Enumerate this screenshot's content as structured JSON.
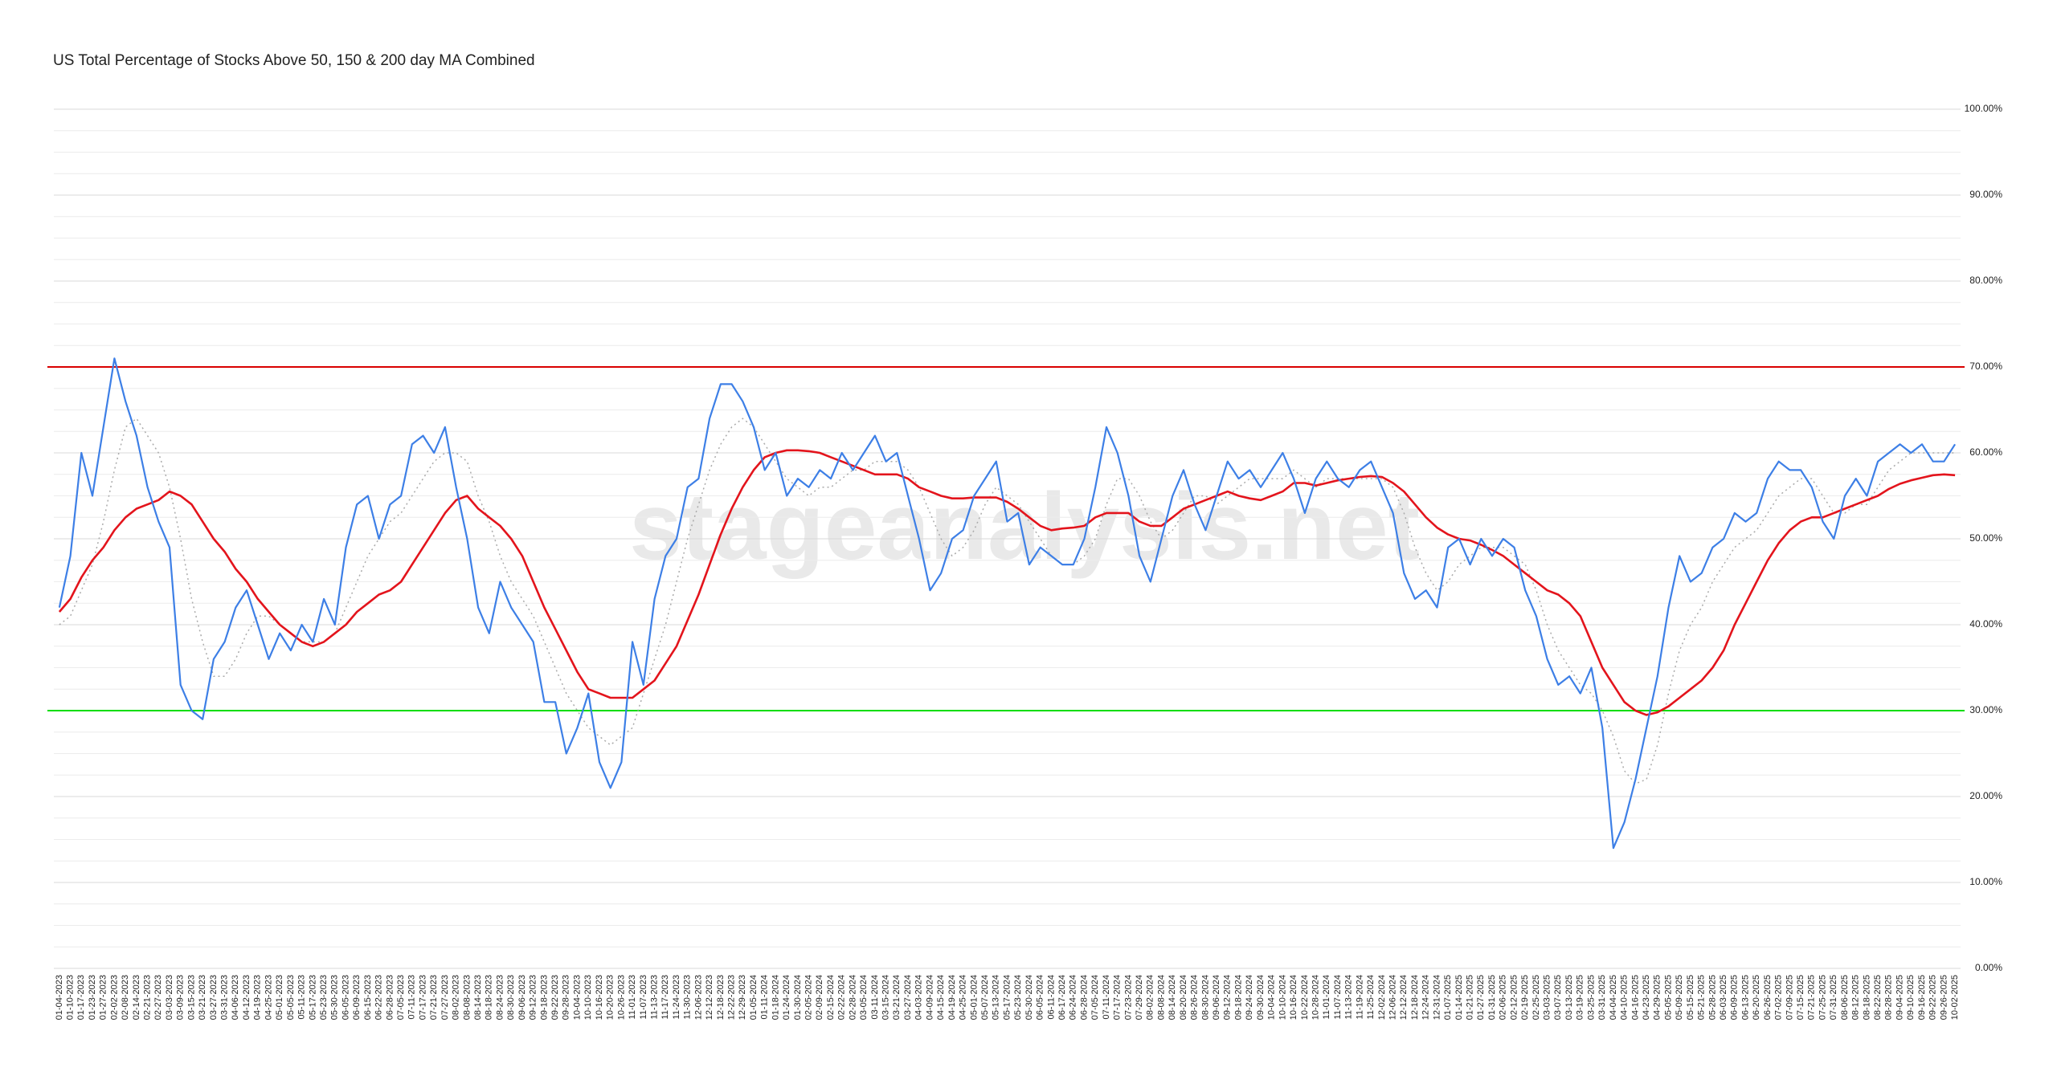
{
  "chart_data": {
    "type": "line",
    "title": "US Total Percentage of Stocks Above 50, 150 & 200 day MA Combined",
    "watermark": "stageanalysis.net",
    "categories": [
      "01-04-2023",
      "01-10-2023",
      "01-17-2023",
      "01-23-2023",
      "01-27-2023",
      "02-02-2023",
      "02-08-2023",
      "02-14-2023",
      "02-21-2023",
      "02-27-2023",
      "03-03-2023",
      "03-09-2023",
      "03-15-2023",
      "03-21-2023",
      "03-27-2023",
      "03-31-2023",
      "04-06-2023",
      "04-12-2023",
      "04-19-2023",
      "04-25-2023",
      "05-01-2023",
      "05-05-2023",
      "05-11-2023",
      "05-17-2023",
      "05-23-2023",
      "05-30-2023",
      "06-05-2023",
      "06-09-2023",
      "06-15-2023",
      "06-22-2023",
      "06-28-2023",
      "07-05-2023",
      "07-11-2023",
      "07-17-2023",
      "07-21-2023",
      "07-27-2023",
      "08-02-2023",
      "08-08-2023",
      "08-14-2023",
      "08-18-2023",
      "08-24-2023",
      "08-30-2023",
      "09-06-2023",
      "09-12-2023",
      "09-18-2023",
      "09-22-2023",
      "09-28-2023",
      "10-04-2023",
      "10-10-2023",
      "10-16-2023",
      "10-20-2023",
      "10-26-2023",
      "11-01-2023",
      "11-07-2023",
      "11-13-2023",
      "11-17-2023",
      "11-24-2023",
      "11-30-2023",
      "12-06-2023",
      "12-12-2023",
      "12-18-2023",
      "12-22-2023",
      "12-29-2023",
      "01-05-2024",
      "01-11-2024",
      "01-18-2024",
      "01-24-2024",
      "01-30-2024",
      "02-05-2024",
      "02-09-2024",
      "02-15-2024",
      "02-22-2024",
      "02-28-2024",
      "03-05-2024",
      "03-11-2024",
      "03-15-2024",
      "03-21-2024",
      "03-27-2024",
      "04-03-2024",
      "04-09-2024",
      "04-15-2024",
      "04-19-2024",
      "04-25-2024",
      "05-01-2024",
      "05-07-2024",
      "05-13-2024",
      "05-17-2024",
      "05-23-2024",
      "05-30-2024",
      "06-05-2024",
      "06-11-2024",
      "06-17-2024",
      "06-24-2024",
      "06-28-2024",
      "07-05-2024",
      "07-11-2024",
      "07-17-2024",
      "07-23-2024",
      "07-29-2024",
      "08-02-2024",
      "08-08-2024",
      "08-14-2024",
      "08-20-2024",
      "08-26-2024",
      "08-30-2024",
      "09-06-2024",
      "09-12-2024",
      "09-18-2024",
      "09-24-2024",
      "09-30-2024",
      "10-04-2024",
      "10-10-2024",
      "10-16-2024",
      "10-22-2024",
      "10-28-2024",
      "11-01-2024",
      "11-07-2024",
      "11-13-2024",
      "11-19-2024",
      "11-25-2024",
      "12-02-2024",
      "12-06-2024",
      "12-12-2024",
      "12-18-2024",
      "12-24-2024",
      "12-31-2024",
      "01-07-2025",
      "01-14-2025",
      "01-21-2025",
      "01-27-2025",
      "01-31-2025",
      "02-06-2025",
      "02-12-2025",
      "02-19-2025",
      "02-25-2025",
      "03-03-2025",
      "03-07-2025",
      "03-13-2025",
      "03-19-2025",
      "03-25-2025",
      "03-31-2025",
      "04-04-2025",
      "04-10-2025",
      "04-16-2025",
      "04-23-2025",
      "04-29-2025",
      "05-05-2025",
      "05-09-2025",
      "05-15-2025",
      "05-21-2025",
      "05-28-2025",
      "06-03-2025",
      "06-09-2025",
      "06-13-2025",
      "06-20-2025",
      "06-26-2025",
      "07-02-2025",
      "07-09-2025",
      "07-15-2025",
      "07-21-2025",
      "07-25-2025",
      "07-31-2025",
      "08-06-2025",
      "08-12-2025",
      "08-18-2025",
      "08-22-2025",
      "08-28-2025",
      "09-04-2025",
      "09-10-2025",
      "09-16-2025",
      "09-22-2025",
      "09-26-2025",
      "10-02-2025"
    ],
    "series": [
      {
        "color": "#3d7fe6",
        "width": 2.2,
        "values": [
          42,
          48,
          60,
          55,
          63,
          71,
          66,
          62,
          56,
          52,
          49,
          33,
          30,
          29,
          36,
          38,
          42,
          44,
          40,
          36,
          39,
          37,
          40,
          38,
          43,
          40,
          49,
          54,
          55,
          50,
          54,
          55,
          61,
          62,
          60,
          63,
          56,
          50,
          42,
          39,
          45,
          42,
          40,
          38,
          31,
          31,
          25,
          28,
          32,
          24,
          21,
          24,
          38,
          33,
          43,
          48,
          50,
          56,
          57,
          64,
          68,
          68,
          66,
          63,
          58,
          60,
          55,
          57,
          56,
          58,
          57,
          60,
          58,
          60,
          62,
          59,
          60,
          55,
          50,
          44,
          46,
          50,
          51,
          55,
          57,
          59,
          52,
          53,
          47,
          49,
          48,
          47,
          47,
          50,
          56,
          63,
          60,
          55,
          48,
          45,
          50,
          55,
          58,
          54,
          51,
          55,
          59,
          57,
          58,
          56,
          58,
          60,
          57,
          53,
          57,
          59,
          57,
          56,
          58,
          59,
          56,
          53,
          46,
          43,
          44,
          42,
          49,
          50,
          47,
          50,
          48,
          50,
          49,
          44,
          41,
          36,
          33,
          34,
          32,
          35,
          28,
          14,
          17,
          22,
          28,
          34,
          42,
          48,
          45,
          46,
          49,
          50,
          53,
          52,
          53,
          57,
          59,
          58,
          58,
          56,
          52,
          50,
          55,
          57,
          55,
          59,
          60,
          61,
          60,
          61,
          59,
          59,
          61
        ]
      },
      {
        "color": "#aaaaaa",
        "width": 1.5,
        "dash": "2 4",
        "values": [
          40,
          41,
          44,
          47,
          52,
          58,
          63,
          64,
          62,
          60,
          56,
          50,
          43,
          38,
          34,
          34,
          36,
          39,
          41,
          41,
          40,
          39,
          38,
          38,
          38,
          39,
          42,
          45,
          48,
          50,
          52,
          53,
          55,
          57,
          59,
          60,
          60,
          59,
          55,
          52,
          48,
          45,
          43,
          41,
          38,
          35,
          32,
          30,
          28,
          27,
          26,
          27,
          28,
          32,
          36,
          40,
          45,
          50,
          54,
          58,
          61,
          63,
          64,
          63,
          61,
          59,
          57,
          56,
          55,
          56,
          56,
          57,
          58,
          58,
          59,
          59,
          59,
          58,
          56,
          53,
          50,
          48,
          49,
          51,
          54,
          56,
          55,
          54,
          52,
          50,
          48,
          47,
          47,
          48,
          50,
          54,
          57,
          57,
          55,
          52,
          50,
          51,
          53,
          55,
          55,
          54,
          55,
          56,
          57,
          57,
          57,
          57,
          58,
          57,
          56,
          57,
          57,
          57,
          57,
          57,
          57,
          56,
          53,
          49,
          46,
          44,
          45,
          47,
          48,
          49,
          49,
          49,
          48,
          47,
          44,
          40,
          37,
          35,
          33,
          32,
          30,
          27,
          23,
          21.5,
          22,
          26,
          32,
          37,
          40,
          42,
          45,
          47,
          49,
          50,
          51,
          53,
          55,
          56,
          57,
          57,
          55,
          53,
          53,
          54,
          54,
          56,
          58,
          59,
          60,
          60,
          60,
          60,
          60
        ]
      },
      {
        "color": "#e3141c",
        "width": 2.6,
        "values": [
          41.5,
          43,
          45.5,
          47.5,
          49,
          51,
          52.5,
          53.5,
          54,
          54.5,
          55.5,
          55,
          54,
          52,
          50,
          48.5,
          46.5,
          45,
          43,
          41.5,
          40,
          39,
          38,
          37.5,
          38,
          39,
          40,
          41.5,
          42.5,
          43.5,
          44,
          45,
          47,
          49,
          51,
          53,
          54.5,
          55,
          53.5,
          52.5,
          51.5,
          50,
          48,
          45,
          42,
          39.5,
          37,
          34.5,
          32.5,
          32,
          31.5,
          31.5,
          31.5,
          32.5,
          33.5,
          35.5,
          37.5,
          40.5,
          43.5,
          47,
          50.5,
          53.5,
          56,
          58,
          59.5,
          60,
          60.3,
          60.3,
          60.2,
          60,
          59.5,
          59,
          58.5,
          58,
          57.5,
          57.5,
          57.5,
          57,
          56,
          55.5,
          55,
          54.7,
          54.7,
          54.8,
          54.8,
          54.8,
          54.3,
          53.5,
          52.5,
          51.5,
          51,
          51.2,
          51.3,
          51.5,
          52.5,
          53,
          53,
          53,
          52,
          51.5,
          51.5,
          52.5,
          53.5,
          54,
          54.5,
          55,
          55.5,
          55,
          54.7,
          54.5,
          55,
          55.5,
          56.5,
          56.5,
          56.2,
          56.5,
          56.8,
          57,
          57.2,
          57.3,
          57.2,
          56.5,
          55.5,
          54,
          52.5,
          51.3,
          50.5,
          50,
          49.8,
          49.3,
          48.7,
          48,
          47,
          46,
          45,
          44,
          43.5,
          42.5,
          41,
          38,
          35,
          33,
          31,
          30,
          29.5,
          29.8,
          30.5,
          31.5,
          32.5,
          33.5,
          35,
          37,
          40,
          42.5,
          45,
          47.5,
          49.5,
          51,
          52,
          52.5,
          52.5,
          53,
          53.5,
          54,
          54.5,
          55,
          55.8,
          56.4,
          56.8,
          57.1,
          57.4,
          57.5,
          57.4
        ]
      }
    ],
    "hlines": [
      {
        "value": 70,
        "color": "#d90000"
      },
      {
        "value": 30,
        "color": "#00dd00"
      }
    ],
    "ylim": [
      0,
      100
    ],
    "yticks": [
      {
        "value": 0,
        "label": "0.00%"
      },
      {
        "value": 10,
        "label": "10.00%"
      },
      {
        "value": 20,
        "label": "20.00%"
      },
      {
        "value": 30,
        "label": "30.00%"
      },
      {
        "value": 40,
        "label": "40.00%"
      },
      {
        "value": 50,
        "label": "50.00%"
      },
      {
        "value": 60,
        "label": "60.00%"
      },
      {
        "value": 70,
        "label": "70.00%"
      },
      {
        "value": 80,
        "label": "80.00%"
      },
      {
        "value": 90,
        "label": "90.00%"
      },
      {
        "value": 100,
        "label": "100.00%"
      }
    ],
    "yminorticks": [
      2.5,
      5,
      7.5,
      12.5,
      15,
      17.5,
      22.5,
      25,
      27.5,
      32.5,
      35,
      37.5,
      42.5,
      45,
      47.5,
      52.5,
      55,
      57.5,
      62.5,
      65,
      67.5,
      72.5,
      75,
      77.5,
      82.5,
      85,
      87.5,
      92.5,
      95,
      97.5
    ],
    "grid": true
  }
}
